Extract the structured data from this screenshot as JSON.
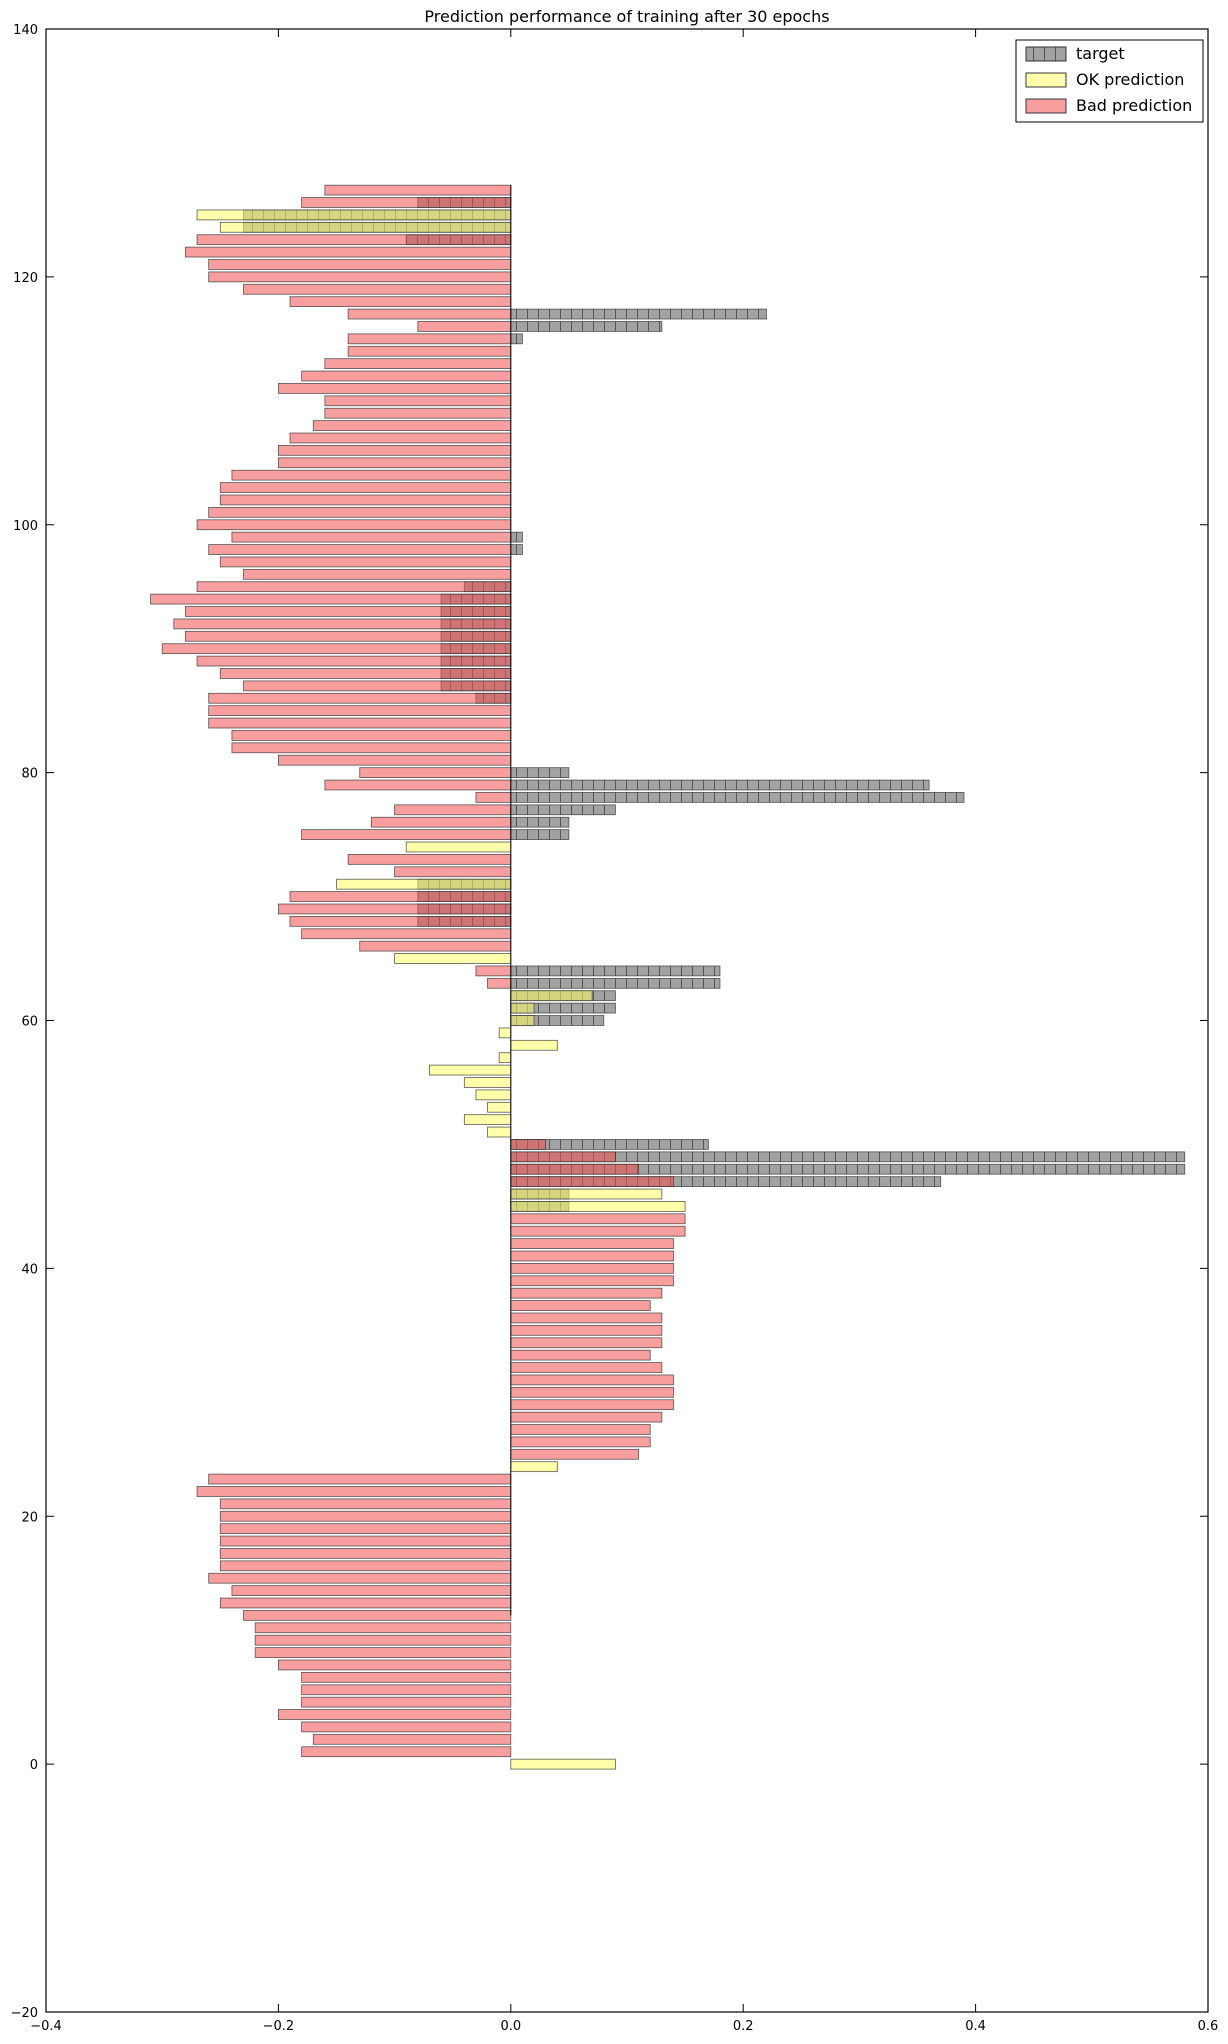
{
  "chart_data": {
    "type": "bar",
    "orientation": "horizontal",
    "title": "Prediction performance of training after 30 epochs",
    "xlabel": "",
    "ylabel": "",
    "xlim": [
      -0.4,
      0.6
    ],
    "ylim": [
      -20,
      140
    ],
    "xticks": [
      -0.4,
      -0.2,
      0.0,
      0.2,
      0.4,
      0.6
    ],
    "xtick_labels": [
      "−0.4",
      "−0.2",
      "0.0",
      "0.2",
      "0.4",
      "0.6"
    ],
    "yticks": [
      -20,
      0,
      20,
      40,
      60,
      80,
      100,
      120,
      140
    ],
    "ytick_labels": [
      "−20",
      "0",
      "20",
      "40",
      "60",
      "80",
      "100",
      "120",
      "140"
    ],
    "grid": false,
    "legend_position": "top-right",
    "bar_height": 0.8,
    "series": [
      {
        "name": "target",
        "color": "#555555",
        "opacity": 0.55,
        "hatch": true,
        "points": [
          [
            45,
            0.05
          ],
          [
            46,
            0.05
          ],
          [
            47,
            0.37
          ],
          [
            48,
            0.58
          ],
          [
            49,
            0.58
          ],
          [
            50,
            0.17
          ],
          [
            60,
            0.08
          ],
          [
            61,
            0.09
          ],
          [
            62,
            0.09
          ],
          [
            63,
            0.18
          ],
          [
            64,
            0.18
          ],
          [
            75,
            0.05
          ],
          [
            76,
            0.05
          ],
          [
            77,
            0.09
          ],
          [
            78,
            0.39
          ],
          [
            79,
            0.36
          ],
          [
            80,
            0.05
          ],
          [
            86,
            -0.03
          ],
          [
            87,
            -0.06
          ],
          [
            88,
            -0.06
          ],
          [
            89,
            -0.06
          ],
          [
            90,
            -0.06
          ],
          [
            91,
            -0.06
          ],
          [
            92,
            -0.06
          ],
          [
            93,
            -0.06
          ],
          [
            94,
            -0.06
          ],
          [
            95,
            -0.04
          ],
          [
            98,
            0.01
          ],
          [
            99,
            0.01
          ],
          [
            115,
            0.01
          ],
          [
            116,
            0.13
          ],
          [
            117,
            0.22
          ],
          [
            68,
            -0.08
          ],
          [
            69,
            -0.08
          ],
          [
            70,
            -0.08
          ],
          [
            71,
            -0.08
          ],
          [
            123,
            -0.09
          ],
          [
            124,
            -0.23
          ],
          [
            125,
            -0.23
          ],
          [
            126,
            -0.08
          ]
        ]
      },
      {
        "name": "OK prediction",
        "color": "#ffff66",
        "opacity": 0.55,
        "hatch": false,
        "points": [
          [
            0,
            0.09
          ],
          [
            24,
            0.04
          ],
          [
            45,
            0.15
          ],
          [
            46,
            0.13
          ],
          [
            51,
            -0.02
          ],
          [
            52,
            -0.04
          ],
          [
            53,
            -0.02
          ],
          [
            54,
            -0.03
          ],
          [
            55,
            -0.04
          ],
          [
            56,
            -0.07
          ],
          [
            57,
            -0.01
          ],
          [
            58,
            0.04
          ],
          [
            59,
            -0.01
          ],
          [
            60,
            0.02
          ],
          [
            61,
            0.02
          ],
          [
            62,
            0.07
          ],
          [
            65,
            -0.1
          ],
          [
            71,
            -0.15
          ],
          [
            74,
            -0.09
          ],
          [
            124,
            -0.25
          ],
          [
            125,
            -0.27
          ]
        ]
      },
      {
        "name": "Bad prediction",
        "color": "#f05050",
        "opacity": 0.55,
        "hatch": false,
        "points": [
          [
            1,
            -0.18
          ],
          [
            2,
            -0.17
          ],
          [
            3,
            -0.18
          ],
          [
            4,
            -0.2
          ],
          [
            5,
            -0.18
          ],
          [
            6,
            -0.18
          ],
          [
            7,
            -0.18
          ],
          [
            8,
            -0.2
          ],
          [
            9,
            -0.22
          ],
          [
            10,
            -0.22
          ],
          [
            11,
            -0.22
          ],
          [
            12,
            -0.23
          ],
          [
            13,
            -0.25
          ],
          [
            14,
            -0.24
          ],
          [
            15,
            -0.26
          ],
          [
            16,
            -0.25
          ],
          [
            17,
            -0.25
          ],
          [
            18,
            -0.25
          ],
          [
            19,
            -0.25
          ],
          [
            20,
            -0.25
          ],
          [
            21,
            -0.25
          ],
          [
            22,
            -0.27
          ],
          [
            23,
            -0.26
          ],
          [
            25,
            0.11
          ],
          [
            26,
            0.12
          ],
          [
            27,
            0.12
          ],
          [
            28,
            0.13
          ],
          [
            29,
            0.14
          ],
          [
            30,
            0.14
          ],
          [
            31,
            0.14
          ],
          [
            32,
            0.13
          ],
          [
            33,
            0.12
          ],
          [
            34,
            0.13
          ],
          [
            35,
            0.13
          ],
          [
            36,
            0.13
          ],
          [
            37,
            0.12
          ],
          [
            38,
            0.13
          ],
          [
            39,
            0.14
          ],
          [
            40,
            0.14
          ],
          [
            41,
            0.14
          ],
          [
            42,
            0.14
          ],
          [
            43,
            0.15
          ],
          [
            44,
            0.15
          ],
          [
            47,
            0.14
          ],
          [
            48,
            0.11
          ],
          [
            49,
            0.09
          ],
          [
            50,
            0.03
          ],
          [
            63,
            -0.02
          ],
          [
            64,
            -0.03
          ],
          [
            66,
            -0.13
          ],
          [
            67,
            -0.18
          ],
          [
            68,
            -0.19
          ],
          [
            69,
            -0.2
          ],
          [
            70,
            -0.19
          ],
          [
            72,
            -0.1
          ],
          [
            73,
            -0.14
          ],
          [
            75,
            -0.18
          ],
          [
            76,
            -0.12
          ],
          [
            77,
            -0.1
          ],
          [
            78,
            -0.03
          ],
          [
            79,
            -0.16
          ],
          [
            80,
            -0.13
          ],
          [
            81,
            -0.2
          ],
          [
            82,
            -0.24
          ],
          [
            83,
            -0.24
          ],
          [
            84,
            -0.26
          ],
          [
            85,
            -0.26
          ],
          [
            86,
            -0.26
          ],
          [
            87,
            -0.23
          ],
          [
            88,
            -0.25
          ],
          [
            89,
            -0.27
          ],
          [
            90,
            -0.3
          ],
          [
            91,
            -0.28
          ],
          [
            92,
            -0.29
          ],
          [
            93,
            -0.28
          ],
          [
            94,
            -0.31
          ],
          [
            95,
            -0.27
          ],
          [
            96,
            -0.23
          ],
          [
            97,
            -0.25
          ],
          [
            98,
            -0.26
          ],
          [
            99,
            -0.24
          ],
          [
            100,
            -0.27
          ],
          [
            101,
            -0.26
          ],
          [
            102,
            -0.25
          ],
          [
            103,
            -0.25
          ],
          [
            104,
            -0.24
          ],
          [
            105,
            -0.2
          ],
          [
            106,
            -0.2
          ],
          [
            107,
            -0.19
          ],
          [
            108,
            -0.17
          ],
          [
            109,
            -0.16
          ],
          [
            110,
            -0.16
          ],
          [
            111,
            -0.2
          ],
          [
            112,
            -0.18
          ],
          [
            113,
            -0.16
          ],
          [
            114,
            -0.14
          ],
          [
            115,
            -0.14
          ],
          [
            116,
            -0.08
          ],
          [
            117,
            -0.14
          ],
          [
            118,
            -0.19
          ],
          [
            119,
            -0.23
          ],
          [
            120,
            -0.26
          ],
          [
            121,
            -0.26
          ],
          [
            122,
            -0.28
          ],
          [
            123,
            -0.27
          ],
          [
            126,
            -0.18
          ],
          [
            127,
            -0.16
          ]
        ]
      }
    ]
  }
}
